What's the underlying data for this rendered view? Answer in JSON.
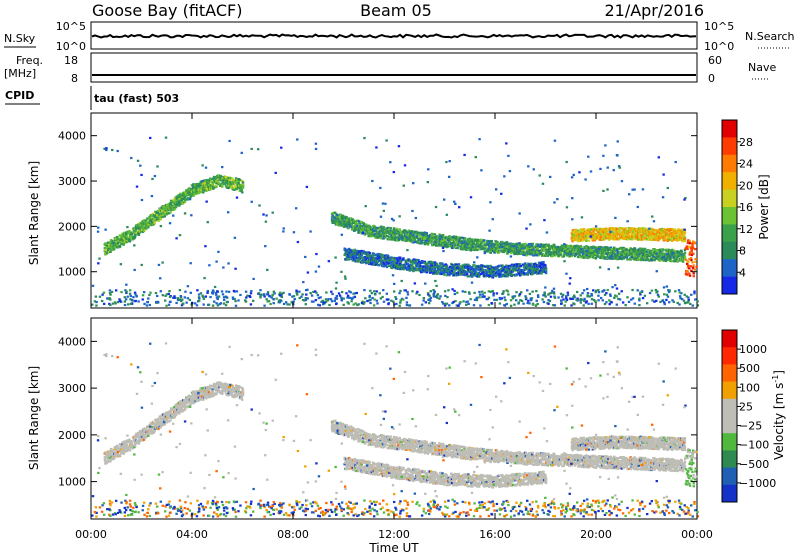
{
  "header": {
    "station": "Goose Bay (fitACF)",
    "beam": "Beam 05",
    "date": "21/Apr/2016"
  },
  "panels": {
    "nsky": {
      "left_label": "N.Sky",
      "right_label": "N.Search",
      "left_ticks": [
        "10^5",
        "10^0"
      ],
      "right_ticks": [
        "10^5",
        "10^0"
      ]
    },
    "freq": {
      "left_label": "Freq.",
      "left_unit": "[MHz]",
      "left_ticks": [
        "18",
        "8"
      ],
      "right_label": "Nave",
      "right_ticks": [
        "60",
        "0"
      ]
    },
    "cpid": {
      "label": "CPID",
      "mode": "tau (fast) 503"
    }
  },
  "chart_data": [
    {
      "type": "heatmap",
      "name": "power",
      "ylabel": "Slant Range [km]",
      "ylim": [
        200,
        4500
      ],
      "yticks": [
        1000,
        2000,
        3000,
        4000
      ],
      "colorbar": {
        "label": "Power [dB]",
        "range": [
          0,
          32
        ],
        "ticks": [
          4,
          8,
          12,
          16,
          20,
          24,
          28
        ],
        "colors": [
          "#1428e6",
          "#1e64c8",
          "#2b8a5a",
          "#3aa04a",
          "#6bc232",
          "#c8d020",
          "#f0b000",
          "#ff7a00",
          "#ff3c00",
          "#e00000"
        ]
      },
      "features": [
        {
          "desc": "ionospheric band",
          "path": [
            [
              0.5,
              1500
            ],
            [
              1.5,
              1800
            ],
            [
              3,
              2400
            ],
            [
              4,
              2800
            ],
            [
              5,
              3000
            ],
            [
              6,
              2900
            ]
          ],
          "power": 12
        },
        {
          "desc": "ionospheric band",
          "path": [
            [
              9.5,
              2200
            ],
            [
              11,
              1900
            ],
            [
              13,
              1750
            ],
            [
              15,
              1600
            ],
            [
              17,
              1500
            ],
            [
              19,
              1450
            ],
            [
              21,
              1400
            ],
            [
              23.5,
              1350
            ]
          ],
          "power": 10
        },
        {
          "desc": "strong band",
          "path": [
            [
              19,
              1800
            ],
            [
              21,
              1850
            ],
            [
              23.5,
              1800
            ]
          ],
          "power": 20
        },
        {
          "desc": "lower band",
          "path": [
            [
              10,
              1400
            ],
            [
              12,
              1200
            ],
            [
              14,
              1050
            ],
            [
              16,
              1000
            ],
            [
              18,
              1100
            ]
          ],
          "power": 6
        }
      ]
    },
    {
      "type": "heatmap",
      "name": "velocity",
      "ylabel": "Slant Range [km]",
      "ylim": [
        200,
        4500
      ],
      "yticks": [
        1000,
        2000,
        3000,
        4000
      ],
      "colorbar": {
        "label": "Velocity [m s",
        "label_sup": "-1",
        "label_end": "]",
        "ticks": [
          "1000",
          "500",
          "100",
          "25",
          "−25",
          "−100",
          "−500",
          "−1000"
        ],
        "colors": [
          "#1432c8",
          "#2060b4",
          "#2e8a50",
          "#50b83c",
          "#bebeb6",
          "#bebeb6",
          "#f0a000",
          "#ff6400",
          "#ff2800",
          "#e00000"
        ]
      }
    }
  ],
  "xaxis": {
    "label": "Time UT",
    "range": [
      0,
      24
    ],
    "ticks": [
      "00:00",
      "04:00",
      "08:00",
      "12:00",
      "16:00",
      "20:00",
      "00:00"
    ]
  },
  "colors": {
    "ground_band": "#2a40c8",
    "velocity_gray": "#bdbdb5"
  }
}
